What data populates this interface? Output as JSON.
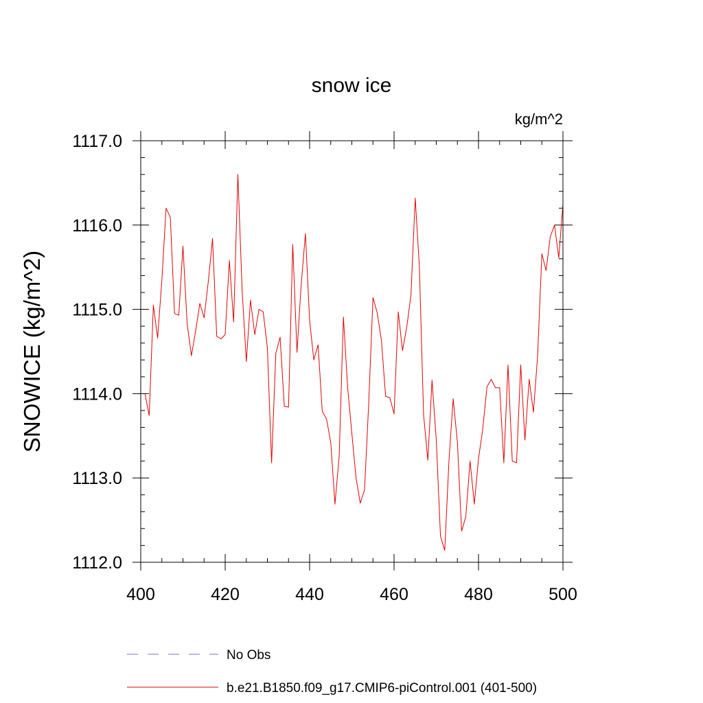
{
  "chart_data": {
    "type": "line",
    "title": "snow ice",
    "units": "kg/m^2",
    "xlabel": "",
    "ylabel": "SNOWICE  (kg/m^2)",
    "xlim": [
      400,
      500
    ],
    "ylim": [
      1112.0,
      1117.0
    ],
    "x_ticks": [
      400,
      420,
      440,
      460,
      480,
      500
    ],
    "x_tick_labels": [
      "400",
      "420",
      "440",
      "460",
      "480",
      "500"
    ],
    "y_ticks": [
      1112.0,
      1113.0,
      1114.0,
      1115.0,
      1116.0,
      1117.0
    ],
    "y_tick_labels": [
      "1112.0",
      "1113.0",
      "1114.0",
      "1115.0",
      "1116.0",
      "1117.0"
    ],
    "grid": false,
    "legend": {
      "placement": "bottom",
      "entries": [
        {
          "label": "No Obs",
          "color": "#7b6fc0",
          "style": "dashed"
        },
        {
          "label": "b.e21.B1850.f09_g17.CMIP6-piControl.001 (401-500)",
          "color": "#e00000",
          "style": "solid"
        }
      ]
    },
    "series": [
      {
        "name": "b.e21.B1850.f09_g17.CMIP6-piControl.001 (401-500)",
        "color": "#e00000",
        "x": [
          401,
          402,
          403,
          404,
          405,
          406,
          407,
          408,
          409,
          410,
          411,
          412,
          413,
          414,
          415,
          416,
          417,
          418,
          419,
          420,
          421,
          422,
          423,
          424,
          425,
          426,
          427,
          428,
          429,
          430,
          431,
          432,
          433,
          434,
          435,
          436,
          437,
          438,
          439,
          440,
          441,
          442,
          443,
          444,
          445,
          446,
          447,
          448,
          449,
          450,
          451,
          452,
          453,
          454,
          455,
          456,
          457,
          458,
          459,
          460,
          461,
          462,
          463,
          464,
          465,
          466,
          467,
          468,
          469,
          470,
          471,
          472,
          473,
          474,
          475,
          476,
          477,
          478,
          479,
          480,
          481,
          482,
          483,
          484,
          485,
          486,
          487,
          488,
          489,
          490,
          491,
          492,
          493,
          494,
          495,
          496,
          497,
          498,
          499,
          500
        ],
        "values": [
          1114.0,
          1113.74,
          1115.05,
          1114.66,
          1115.35,
          1116.2,
          1116.09,
          1114.95,
          1114.93,
          1115.75,
          1114.83,
          1114.45,
          1114.74,
          1115.07,
          1114.9,
          1115.33,
          1115.84,
          1114.68,
          1114.65,
          1114.7,
          1115.58,
          1114.85,
          1116.6,
          1115.24,
          1114.38,
          1115.11,
          1114.7,
          1115.0,
          1114.97,
          1114.54,
          1113.18,
          1114.48,
          1114.67,
          1113.85,
          1113.84,
          1115.77,
          1114.49,
          1115.29,
          1115.9,
          1114.87,
          1114.4,
          1114.58,
          1113.79,
          1113.7,
          1113.42,
          1112.69,
          1113.26,
          1114.91,
          1114.07,
          1113.53,
          1113.0,
          1112.7,
          1112.86,
          1113.89,
          1115.14,
          1114.96,
          1114.64,
          1113.97,
          1113.95,
          1113.76,
          1114.97,
          1114.51,
          1114.79,
          1115.17,
          1116.32,
          1115.5,
          1113.75,
          1113.21,
          1114.16,
          1113.45,
          1112.31,
          1112.14,
          1113.21,
          1113.94,
          1113.42,
          1112.37,
          1112.54,
          1113.2,
          1112.69,
          1113.23,
          1113.58,
          1114.08,
          1114.17,
          1114.07,
          1114.07,
          1113.18,
          1114.34,
          1113.2,
          1113.18,
          1114.34,
          1113.45,
          1114.17,
          1113.78,
          1114.45,
          1115.66,
          1115.46,
          1115.86,
          1116.0,
          1115.61,
          1116.25
        ]
      }
    ]
  }
}
